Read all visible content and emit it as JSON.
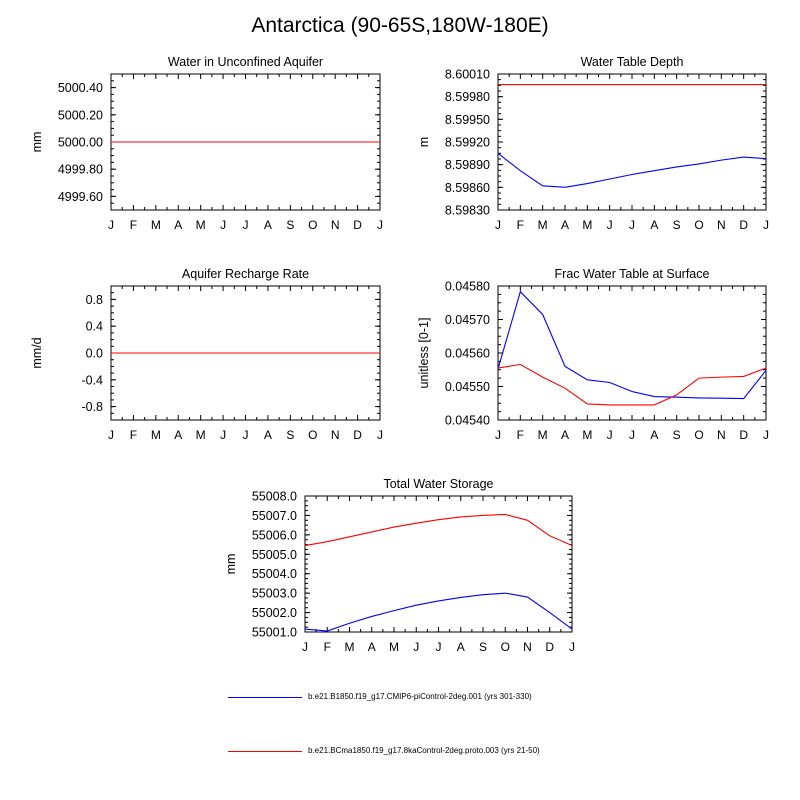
{
  "figure": {
    "title": "Antarctica (90-65S,180W-180E)",
    "colors": {
      "series_1": "#0000ff",
      "series_2": "#ff0000",
      "axis": "#000000"
    }
  },
  "legend": [
    {
      "label": "b.e21.B1850.f19_g17.CMIP6-piControl-2deg.001 (yrs 301-330)",
      "color": "#0000ff"
    },
    {
      "label": "b.e21.BCma1850.f19_g17.8kaControl-2deg.proto.003 (yrs 21-50)",
      "color": "#ff0000"
    }
  ],
  "chart_data": [
    {
      "id": "p1",
      "type": "line",
      "title": "Water in Unconfined Aquifer",
      "ylabel": "mm",
      "categories": [
        "J",
        "F",
        "M",
        "A",
        "M",
        "J",
        "J",
        "A",
        "S",
        "O",
        "N",
        "D",
        "J"
      ],
      "ylim": [
        4999.5,
        5000.5
      ],
      "yticks": [
        "5000.40",
        "5000.20",
        "5000.00",
        "4999.80",
        "4999.60"
      ],
      "ytick_values": [
        5000.4,
        5000.2,
        5000.0,
        4999.8,
        4999.6
      ],
      "series": [
        {
          "color": "#0000ff",
          "values": [
            5000,
            5000,
            5000,
            5000,
            5000,
            5000,
            5000,
            5000,
            5000,
            5000,
            5000,
            5000,
            5000
          ]
        },
        {
          "color": "#ff0000",
          "values": [
            5000,
            5000,
            5000,
            5000,
            5000,
            5000,
            5000,
            5000,
            5000,
            5000,
            5000,
            5000,
            5000
          ]
        }
      ]
    },
    {
      "id": "p2",
      "type": "line",
      "title": "Water Table Depth",
      "ylabel": "m",
      "categories": [
        "J",
        "F",
        "M",
        "A",
        "M",
        "J",
        "J",
        "A",
        "S",
        "O",
        "N",
        "D",
        "J"
      ],
      "ylim": [
        8.5983,
        8.6001
      ],
      "yticks": [
        "8.60010",
        "8.59980",
        "8.59950",
        "8.59920",
        "8.59890",
        "8.59860",
        "8.59830"
      ],
      "ytick_values": [
        8.6001,
        8.5998,
        8.5995,
        8.5992,
        8.5989,
        8.5986,
        8.5983
      ],
      "series": [
        {
          "color": "#0000ff",
          "values": [
            8.59905,
            8.59882,
            8.59862,
            8.5986,
            8.59865,
            8.59871,
            8.59877,
            8.59882,
            8.59887,
            8.59891,
            8.59896,
            8.599,
            8.59898
          ]
        },
        {
          "color": "#ff0000",
          "values": [
            8.59996,
            8.59996,
            8.59996,
            8.59996,
            8.59996,
            8.59996,
            8.59996,
            8.59996,
            8.59996,
            8.59996,
            8.59996,
            8.59996,
            8.59996
          ]
        }
      ]
    },
    {
      "id": "p3",
      "type": "line",
      "title": "Aquifer Recharge Rate",
      "ylabel": "mm/d",
      "categories": [
        "J",
        "F",
        "M",
        "A",
        "M",
        "J",
        "J",
        "A",
        "S",
        "O",
        "N",
        "D",
        "J"
      ],
      "ylim": [
        -1.0,
        1.0
      ],
      "yticks": [
        "0.8",
        "0.4",
        "0.0",
        "-0.4",
        "-0.8"
      ],
      "ytick_values": [
        0.8,
        0.4,
        0.0,
        -0.4,
        -0.8
      ],
      "series": [
        {
          "color": "#0000ff",
          "values": [
            0,
            0,
            0,
            0,
            0,
            0,
            0,
            0,
            0,
            0,
            0,
            0,
            0
          ]
        },
        {
          "color": "#ff0000",
          "values": [
            0,
            0,
            0,
            0,
            0,
            0,
            0,
            0,
            0,
            0,
            0,
            0,
            0
          ]
        }
      ]
    },
    {
      "id": "p4",
      "type": "line",
      "title": "Frac Water Table at Surface",
      "ylabel": "unitless [0-1]",
      "categories": [
        "J",
        "F",
        "M",
        "A",
        "M",
        "J",
        "J",
        "A",
        "S",
        "O",
        "N",
        "D",
        "J"
      ],
      "ylim": [
        0.0454,
        0.0458
      ],
      "yticks": [
        "0.04580",
        "0.04570",
        "0.04560",
        "0.04550",
        "0.04540"
      ],
      "ytick_values": [
        0.0458,
        0.0457,
        0.0456,
        0.0455,
        0.0454
      ],
      "series": [
        {
          "color": "#0000ff",
          "values": [
            0.045552,
            0.045783,
            0.045715,
            0.04556,
            0.04552,
            0.045512,
            0.045485,
            0.04547,
            0.045468,
            0.045466,
            0.045465,
            0.045464,
            0.045548
          ]
        },
        {
          "color": "#ff0000",
          "values": [
            0.045555,
            0.045566,
            0.045528,
            0.045495,
            0.045448,
            0.045445,
            0.045445,
            0.045445,
            0.045475,
            0.045525,
            0.045528,
            0.04553,
            0.045555
          ]
        }
      ]
    },
    {
      "id": "p5",
      "type": "line",
      "title": "Total Water Storage",
      "ylabel": "mm",
      "categories": [
        "J",
        "F",
        "M",
        "A",
        "M",
        "J",
        "J",
        "A",
        "S",
        "O",
        "N",
        "D",
        "J"
      ],
      "ylim": [
        55001.0,
        55008.0
      ],
      "yticks": [
        "55008.0",
        "55007.0",
        "55006.0",
        "55005.0",
        "55004.0",
        "55003.0",
        "55002.0",
        "55001.0"
      ],
      "ytick_values": [
        55008.0,
        55007.0,
        55006.0,
        55005.0,
        55004.0,
        55003.0,
        55002.0,
        55001.0
      ],
      "series": [
        {
          "color": "#0000ff",
          "values": [
            55001.15,
            55001.05,
            55001.45,
            55001.8,
            55002.1,
            55002.38,
            55002.6,
            55002.78,
            55002.92,
            55003.0,
            55002.8,
            55002.0,
            55001.15
          ]
        },
        {
          "color": "#ff0000",
          "values": [
            55005.45,
            55005.65,
            55005.9,
            55006.15,
            55006.4,
            55006.6,
            55006.78,
            55006.92,
            55007.0,
            55007.05,
            55006.75,
            55005.95,
            55005.45
          ]
        }
      ]
    }
  ]
}
